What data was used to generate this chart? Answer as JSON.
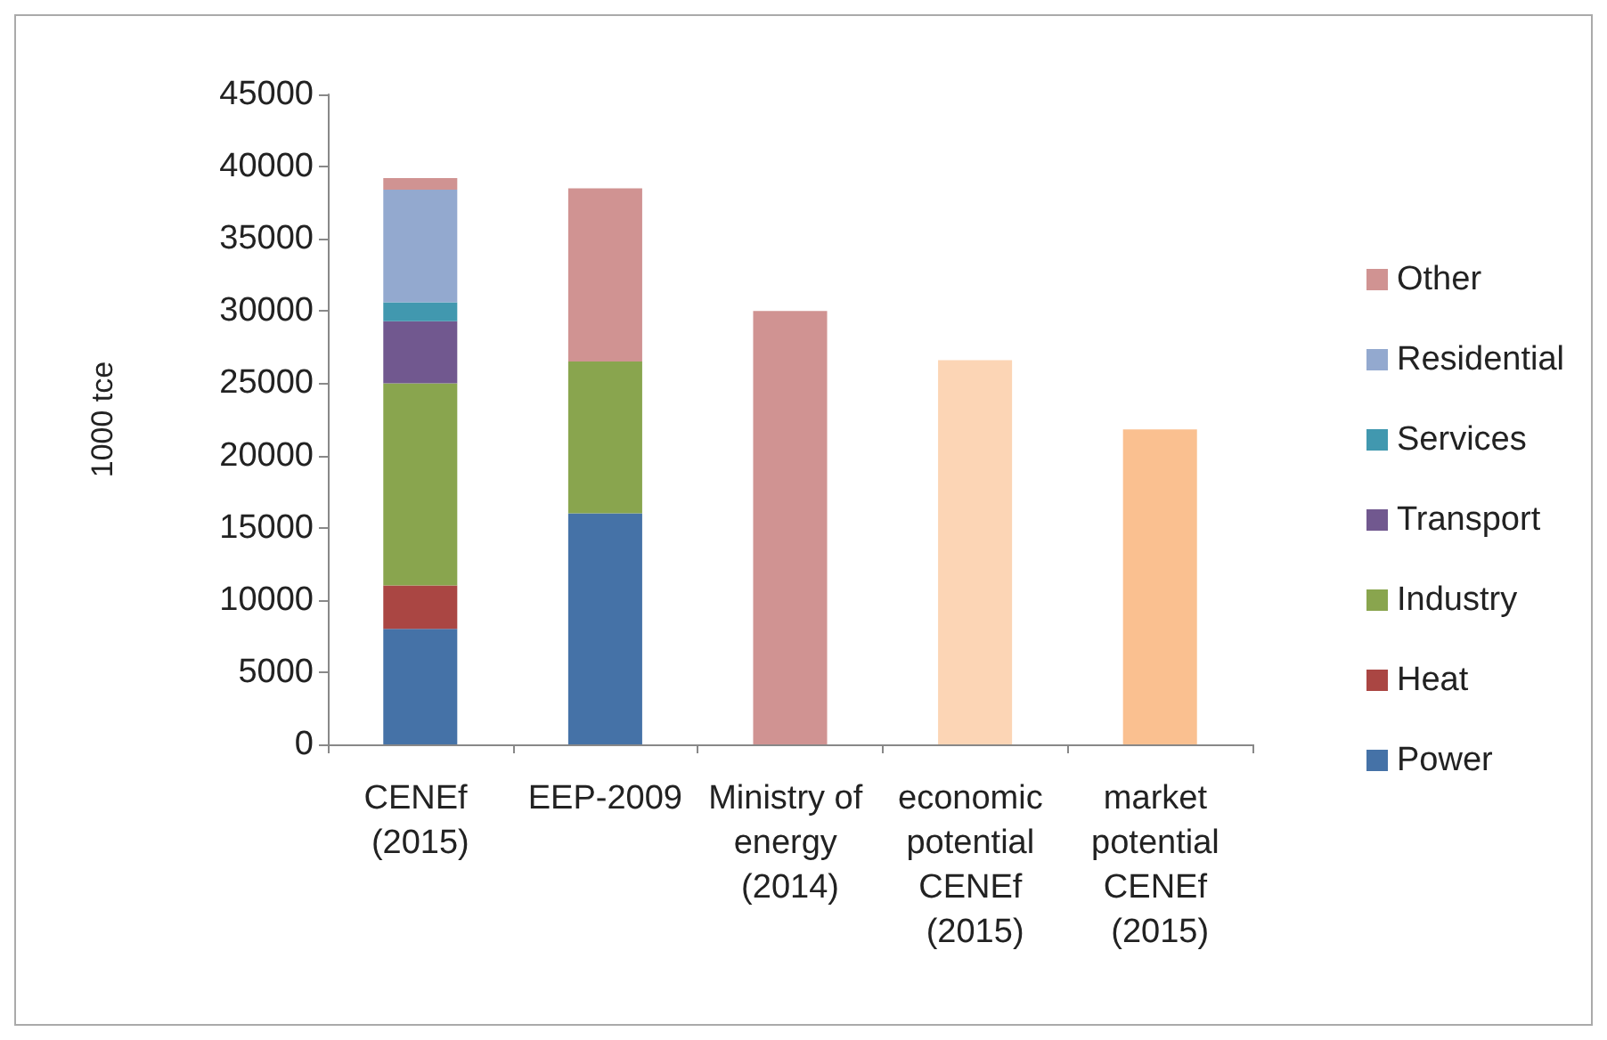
{
  "chart_data": {
    "type": "bar",
    "stacked": true,
    "ylabel": "1000 tce",
    "categories": [
      "CENEf (2015)",
      "EEP-2009",
      "Ministry of energy (2014)",
      "economic potential CENEf (2015)",
      "market potential CENEf (2015)"
    ],
    "series": [
      {
        "name": "Power",
        "color": "#4572a7",
        "values": [
          8000,
          16000,
          null,
          null,
          null
        ]
      },
      {
        "name": "Heat",
        "color": "#aa4643",
        "values": [
          3000,
          null,
          null,
          null,
          null
        ]
      },
      {
        "name": "Industry",
        "color": "#89a54e",
        "values": [
          14000,
          10500,
          null,
          null,
          null
        ]
      },
      {
        "name": "Transport",
        "color": "#71588f",
        "values": [
          4300,
          null,
          null,
          null,
          null
        ]
      },
      {
        "name": "Services",
        "color": "#4198af",
        "values": [
          1300,
          null,
          null,
          null,
          null
        ]
      },
      {
        "name": "Residential",
        "color": "#93a9cf",
        "values": [
          7800,
          null,
          null,
          null,
          null
        ]
      },
      {
        "name": "Other",
        "color": "#d09392",
        "values": [
          800,
          12000,
          30000,
          null,
          null
        ]
      },
      {
        "color": "#fcd5b5",
        "values": [
          null,
          null,
          null,
          26600,
          null
        ]
      },
      {
        "color": "#fac090",
        "values": [
          null,
          null,
          null,
          null,
          21800
        ]
      }
    ],
    "ylim": [
      0,
      45000
    ],
    "yticks": [
      0,
      5000,
      10000,
      15000,
      20000,
      25000,
      30000,
      35000,
      40000,
      45000
    ],
    "grid": false,
    "legend": "right"
  }
}
